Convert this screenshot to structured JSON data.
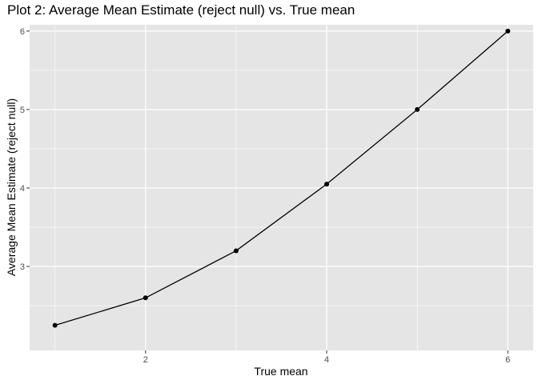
{
  "chart_data": {
    "type": "line",
    "title": "Plot 2: Average Mean Estimate (reject null) vs. True mean",
    "xlabel": "True mean",
    "ylabel": "Average Mean Estimate (reject null)",
    "x": [
      1,
      2,
      3,
      4,
      5,
      6
    ],
    "y": [
      2.25,
      2.6,
      3.2,
      4.05,
      5.0,
      6.0
    ],
    "xlim": [
      0.72,
      6.28
    ],
    "ylim": [
      1.93,
      6.08
    ],
    "x_ticks": [
      2,
      4,
      6
    ],
    "x_tick_labels": [
      "2",
      "4",
      "6"
    ],
    "y_ticks": [
      3,
      4,
      5,
      6
    ],
    "y_tick_labels": [
      "3",
      "4",
      "5",
      "6"
    ],
    "grid": true,
    "colors": {
      "panel": "#e5e5e5",
      "grid_major": "#ffffff",
      "line": "#000000"
    }
  }
}
